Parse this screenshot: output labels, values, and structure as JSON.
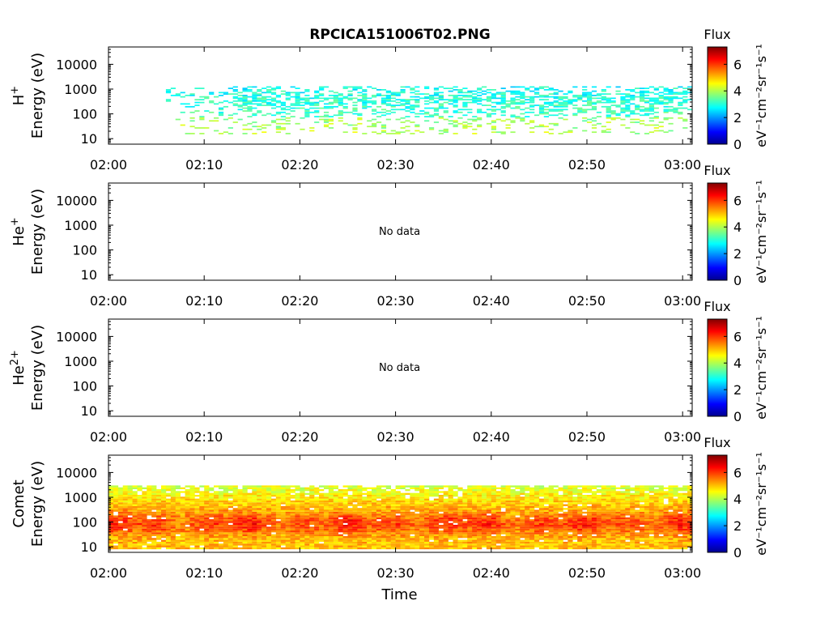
{
  "title": "RPCICA151006T02.PNG",
  "colors": {
    "colormap": "jet",
    "frame": "#000000",
    "background": "#ffffff"
  },
  "chart_data": [
    {
      "type": "heatmap",
      "ylabel_species": "H⁺",
      "ylabel_species_base": "H",
      "ylabel_species_sup": "+",
      "ylabel": "Energy (eV)",
      "xlabel": "",
      "x_ticks": [
        "02:00",
        "02:10",
        "02:20",
        "02:30",
        "02:40",
        "02:50",
        "03:00"
      ],
      "y_ticks": [
        "10",
        "100",
        "1000",
        "10000"
      ],
      "y_scale": "log",
      "ylim_eV": [
        6,
        50000
      ],
      "xlim": [
        "02:00",
        "03:01"
      ],
      "has_data": true,
      "data_start": "02:06",
      "data_end": "03:01",
      "typical_flux": 3.4,
      "energy_band_eV": [
        15,
        1300
      ],
      "colorbar": {
        "label": "Flux",
        "units": "eV⁻¹cm⁻²sr⁻¹s⁻¹",
        "ticks": [
          "0",
          "2",
          "4",
          "6"
        ],
        "range": [
          0,
          7.3
        ]
      }
    },
    {
      "type": "heatmap",
      "ylabel_species": "He⁺",
      "ylabel_species_base": "He",
      "ylabel_species_sup": "+",
      "ylabel": "Energy (eV)",
      "xlabel": "",
      "x_ticks": [
        "02:00",
        "02:10",
        "02:20",
        "02:30",
        "02:40",
        "02:50",
        "03:00"
      ],
      "y_ticks": [
        "10",
        "100",
        "1000",
        "10000"
      ],
      "y_scale": "log",
      "ylim_eV": [
        6,
        50000
      ],
      "xlim": [
        "02:00",
        "03:01"
      ],
      "has_data": false,
      "annotation": "No data",
      "colorbar": {
        "label": "Flux",
        "units": "eV⁻¹cm⁻²sr⁻¹s⁻¹",
        "ticks": [
          "0",
          "2",
          "4",
          "6"
        ],
        "range": [
          0,
          7.3
        ]
      }
    },
    {
      "type": "heatmap",
      "ylabel_species": "He²⁺",
      "ylabel_species_base": "He",
      "ylabel_species_sup": "2+",
      "ylabel": "Energy (eV)",
      "xlabel": "",
      "x_ticks": [
        "02:00",
        "02:10",
        "02:20",
        "02:30",
        "02:40",
        "02:50",
        "03:00"
      ],
      "y_ticks": [
        "10",
        "100",
        "1000",
        "10000"
      ],
      "y_scale": "log",
      "ylim_eV": [
        6,
        50000
      ],
      "xlim": [
        "02:00",
        "03:01"
      ],
      "has_data": false,
      "annotation": "No data",
      "colorbar": {
        "label": "Flux",
        "units": "eV⁻¹cm⁻²sr⁻¹s⁻¹",
        "ticks": [
          "0",
          "2",
          "4",
          "6"
        ],
        "range": [
          0,
          7.3
        ]
      }
    },
    {
      "type": "heatmap",
      "ylabel_species": "Comet",
      "ylabel": "Energy (eV)",
      "xlabel": "Time",
      "x_ticks": [
        "02:00",
        "02:10",
        "02:20",
        "02:30",
        "02:40",
        "02:50",
        "03:00"
      ],
      "y_ticks": [
        "10",
        "100",
        "1000",
        "10000"
      ],
      "y_scale": "log",
      "ylim_eV": [
        6,
        50000
      ],
      "xlim": [
        "02:00",
        "03:01"
      ],
      "has_data": true,
      "data_start": "02:00",
      "data_end": "03:01",
      "typical_flux": 5.0,
      "energy_band_eV": [
        8,
        3000
      ],
      "colorbar": {
        "label": "Flux",
        "units": "eV⁻¹cm⁻²sr⁻¹s⁻¹",
        "ticks": [
          "0",
          "2",
          "4",
          "6"
        ],
        "range": [
          0,
          7.3
        ]
      }
    }
  ]
}
